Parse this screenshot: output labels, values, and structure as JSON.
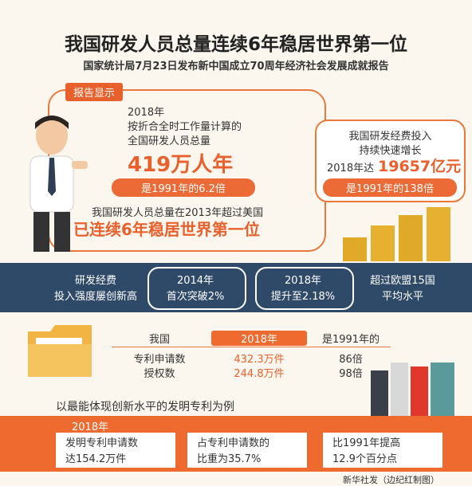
{
  "header": {
    "title": "我国研发人员总量连续6年稳居世界第一位",
    "subtitle": "国家统计局7月23日发布新中国成立70周年经济社会发展成就报告"
  },
  "personnel": {
    "tag": "报告显示",
    "year": "2018年",
    "lines": [
      "按折合全时工作量计算的",
      "全国研发人员总量"
    ],
    "total": "419万人年",
    "ratio": "是1991年的6.2倍",
    "note": "我国研发人员总量在2013年超过美国",
    "highlight": "已连续6年稳居世界第一位"
  },
  "funding": {
    "lines": [
      "我国研发经费投入",
      "持续快速增长"
    ],
    "prefix": "2018年达",
    "amount": "19657亿元",
    "ratio": "是1991年的138倍"
  },
  "intensity": {
    "items": [
      [
        "研发经费",
        "投入强度屡创新高"
      ],
      [
        "2014年",
        "首次突破2%"
      ],
      [
        "2018年",
        "提升至2.18%"
      ],
      [
        "超过欧盟15国",
        "平均水平"
      ]
    ]
  },
  "patents": {
    "headers": [
      "我国",
      "2018年",
      "是1991年的"
    ],
    "rows": [
      [
        "专利申请数",
        "432.3万件",
        "86倍"
      ],
      [
        "授权数",
        "244.8万件",
        "98倍"
      ]
    ]
  },
  "invention": {
    "intro": "以最能体现创新水平的发明专利为例",
    "year": "2018年",
    "cells": [
      [
        "发明专利申请数",
        "达154.2万件"
      ],
      [
        "占专利申请数的",
        "比重为35.7%"
      ],
      [
        "比1991年提高",
        "12.9个百分点"
      ]
    ]
  },
  "footer": {
    "credit": "新华社发（边纪红制图）"
  }
}
